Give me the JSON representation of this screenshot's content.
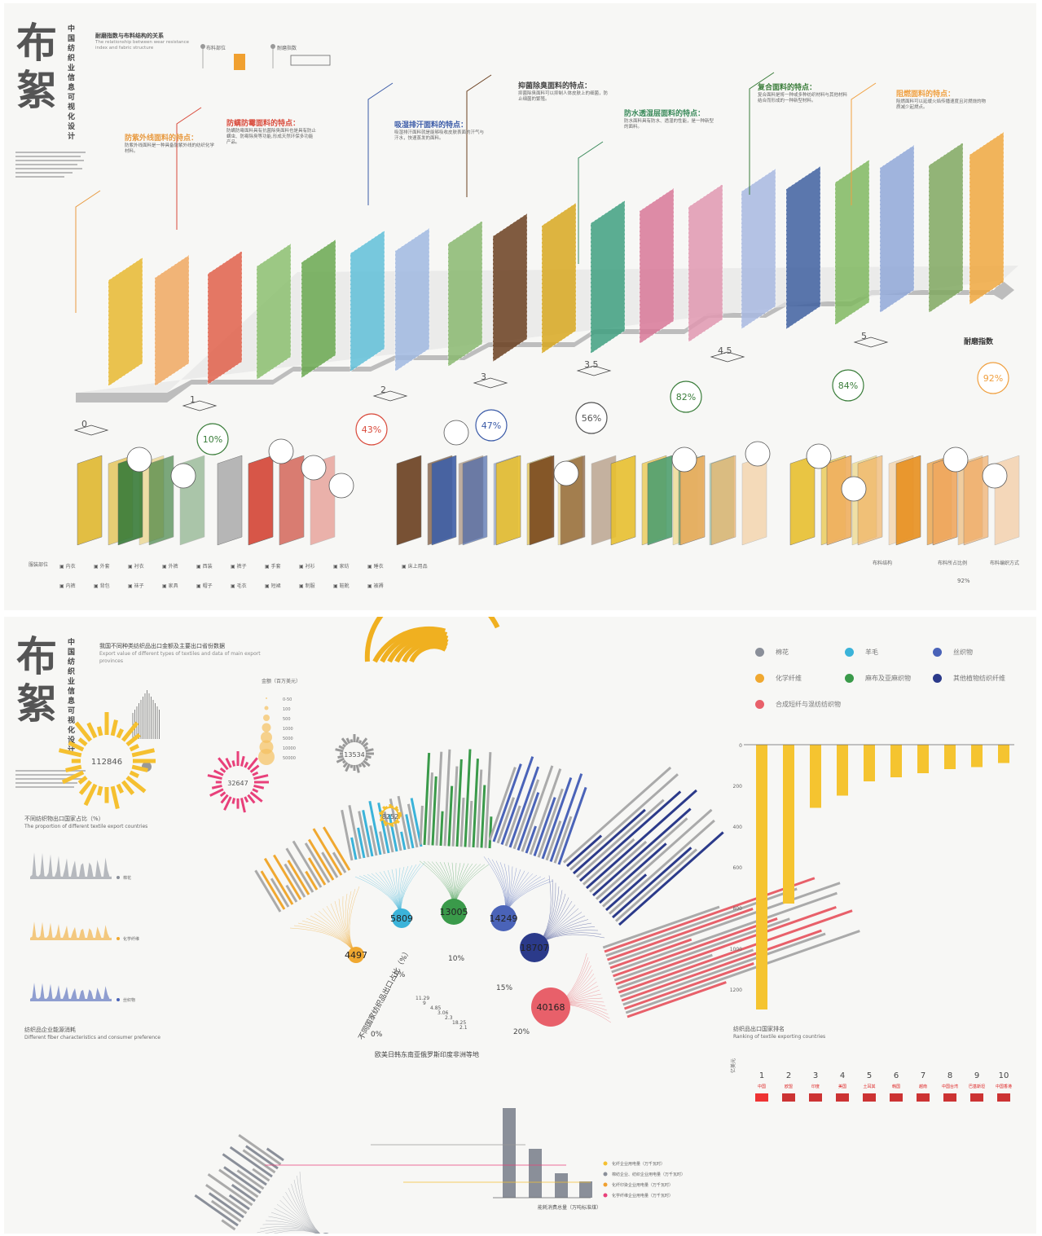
{
  "panel1": {
    "logo_text": "布絮",
    "vertical_title": "中国纺织业信息可视化设计",
    "section_title_cn": "耐磨指数与布料结构的关系",
    "section_title_en": "The relationship between wear resistance index and fabric structure",
    "legend_fabric": "布料部位",
    "legend_wear": "耐磨指数",
    "axis_label": "耐磨指数",
    "feature_titles": [
      "防紫外线面料的特点：",
      "防螨防霉面料的特点：",
      "吸湿排汗面料的特点：",
      "抑菌除臭面料的特点：",
      "防水透湿层面料的特点：",
      "复合面料的特点：",
      "阻燃面料的特点："
    ],
    "feature_descs": [
      "防紫外线面料是一种具备防紫外线的纺织化学材料。",
      "防螨防霉面料具有抗菌除臭面料也是具有防止螨虫、防霉除臭等功能,形成天然环保多功能产品。",
      "吸湿排汗面料就是能够吸收皮肤表面的汗气与汗水，快速蒸发的面料。",
      "抑菌除臭面料可以抑制人体皮肤上的细菌，防止细菌的繁殖。",
      "防水面料具有防水、透湿的性能，是一种新型的面料。",
      "复合面料是将一种或多种纺织材料与其他材料结合而形成的一种新型材料。",
      "阻燃面料可以延缓火焰传播速度且对燃烧的物质减少起燃点。"
    ],
    "chart_data": {
      "type": "bar",
      "categories": [
        "防紫外线",
        "防螨防霉",
        "吸湿排汗",
        "抑菌除臭",
        "防水透湿",
        "复合",
        "阻燃"
      ],
      "series": [
        {
          "name": "耐磨指数",
          "values": [
            0,
            1,
            2,
            3,
            3.5,
            4.5,
            5
          ]
        }
      ],
      "tick_labels": [
        "0",
        "1",
        "2",
        "3",
        "3.5",
        "4.5",
        "5"
      ],
      "percentages": [
        "10%",
        "43%",
        "47%",
        "56%",
        "82%",
        "84%",
        "92%"
      ],
      "xlabel": "耐磨指数"
    },
    "percent_colors": [
      "#3a7d3a",
      "#d94a3b",
      "#3b5ba8",
      "#555555",
      "#3a7d3a",
      "#3a7d3a",
      "#f0a040"
    ],
    "bottom_legend_title": "服装部位",
    "clothing_items": [
      "内衣",
      "外套",
      "衬衣",
      "外裤",
      "西装",
      "裤子",
      "手套",
      "衬衫",
      "家纺",
      "睡衣",
      "床上用品",
      "内裤",
      "背包",
      "袜子",
      "家具",
      "帽子",
      "毛衣",
      "短裙",
      "制服",
      "鞋靴",
      "被褥"
    ],
    "right_legend": [
      "布料结构",
      "布料所占比例",
      "布料编织方式"
    ],
    "right_legend_value": "92%"
  },
  "panel2": {
    "logo_text": "布絮",
    "vertical_title": "中国纺织业信息可视化设计",
    "main_title_cn": "我国不同种类纺织品出口金额及主要出口省份数据",
    "main_title_en": "Export value of different types of textiles and data of main export provinces",
    "scale_title": "金额（百万美元）",
    "scale_values": [
      "0-50",
      "100",
      "500",
      "1000",
      "5000",
      "10000",
      "50000"
    ],
    "legend_labels": [
      "棉花",
      "羊毛",
      "丝织物",
      "化学纤维",
      "麻布及亚麻织物",
      "其他植物纺织纤维",
      "合成短纤与混纺纺织物"
    ],
    "legend_colors": [
      "#8a8f99",
      "#3bb3d9",
      "#4a63b8",
      "#f0a830",
      "#3a9a4a",
      "#2b3a8a",
      "#e8606a"
    ],
    "left_chart_title_cn": "不同纺织物出口国家占比（%）",
    "left_chart_title_en": "The proportion of different textile export countries",
    "left_chart_labels": [
      "棉花",
      "化学纤维",
      "丝织物"
    ],
    "arc_title": "不同国家纺织品出口占比（%）",
    "arc_ticks": [
      "0%",
      "5%",
      "10%",
      "15%",
      "20%"
    ],
    "arc_values": [
      "11.29",
      "9",
      "4.85",
      "3.06",
      "2.3",
      "18.25",
      "2.1"
    ],
    "arc_countries": "欧美日韩东南亚俄罗斯印度非洲等地",
    "chart_data": {
      "type": "bar",
      "categories": [
        "棉花",
        "化学纤维",
        "羊毛",
        "麻布及亚麻织物",
        "丝织物",
        "其他植物纺织纤维",
        "合成短纤与混纺纺织物"
      ],
      "series": [
        {
          "name": "金额（百万美元）",
          "values": [
            1271,
            4497,
            5809,
            13005,
            14249,
            18707,
            40168
          ]
        }
      ]
    },
    "bubble_labels": [
      "1271",
      "4497",
      "5809",
      "13005",
      "14249",
      "18707",
      "40168"
    ],
    "consumer_title_cn": "纺织品企业能源消耗",
    "consumer_title_en": "Different fiber characteristics and consumer preference",
    "sunburst_values": [
      "112846",
      "32647",
      "13534",
      "8252"
    ],
    "consumer_legend": [
      "化纤企业用电量（万千瓦时）",
      "棉纺企业、纺织企业用电量（万千瓦时）",
      "化纤印染企业用电量（万千瓦时）",
      "化学纤维企业用电量（万千瓦时）"
    ],
    "consumer_axis": "能耗消费总量（万吨标准煤）",
    "ranking_title_cn": "纺织品出口国家排名",
    "ranking_title_en": "Ranking of textile exporting countries",
    "ranking_chart": {
      "type": "bar",
      "categories": [
        "1",
        "2",
        "3",
        "4",
        "5",
        "6",
        "7",
        "8",
        "9",
        "10"
      ],
      "countries": [
        "中国",
        "欧盟",
        "印度",
        "美国",
        "土耳其",
        "韩国",
        "越南",
        "中国台湾",
        "巴基斯坦",
        "中国香港"
      ],
      "values": [
        1300,
        780,
        310,
        250,
        180,
        160,
        140,
        120,
        110,
        90
      ],
      "ylim": [
        0,
        1400
      ],
      "ylabel": "亿美元",
      "y_ticks": [
        "0",
        "200",
        "400",
        "600",
        "800",
        "1000",
        "1200"
      ]
    }
  }
}
